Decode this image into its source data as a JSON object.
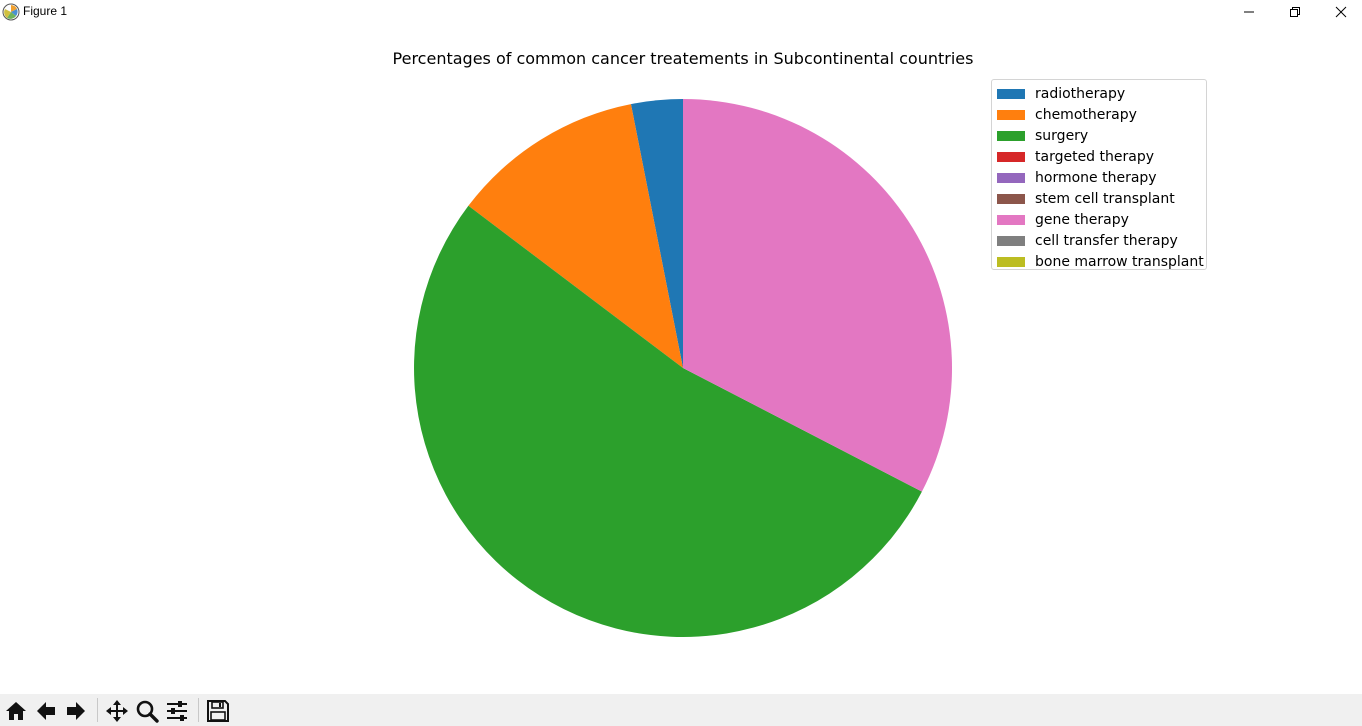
{
  "window": {
    "title": "Figure 1",
    "icons": {
      "app": "matplotlib-icon",
      "minimize": "minimize-icon",
      "restore": "restore-icon",
      "close": "close-icon"
    }
  },
  "toolbar": {
    "buttons": [
      {
        "name": "home-button",
        "icon": "home-icon"
      },
      {
        "name": "back-button",
        "icon": "arrow-left-icon"
      },
      {
        "name": "forward-button",
        "icon": "arrow-right-icon"
      },
      {
        "name": "pan-button",
        "icon": "move-icon"
      },
      {
        "name": "zoom-button",
        "icon": "magnifier-icon"
      },
      {
        "name": "configure-subplots-button",
        "icon": "sliders-icon"
      },
      {
        "name": "save-button",
        "icon": "floppy-disk-icon"
      }
    ]
  },
  "chart_data": {
    "type": "pie",
    "title": "Percentages of common cancer treatements in Subcontinental countries",
    "categories": [
      "radiotherapy",
      "chemotherapy",
      "surgery",
      "targeted therapy",
      "hormone therapy",
      "stem cell transplant",
      "gene therapy",
      "cell transfer therapy",
      "bone marrow transplant"
    ],
    "values": [
      3.1,
      11.6,
      52.7,
      0,
      0,
      0,
      32.6,
      0,
      0
    ],
    "colors": [
      "#1f77b4",
      "#ff7f0e",
      "#2ca02c",
      "#d62728",
      "#9467bd",
      "#8c564b",
      "#e377c2",
      "#7f7f7f",
      "#bcbd22"
    ],
    "start_angle_deg": 90,
    "direction": "counterclockwise",
    "legend": {
      "position": "upper-right"
    }
  }
}
